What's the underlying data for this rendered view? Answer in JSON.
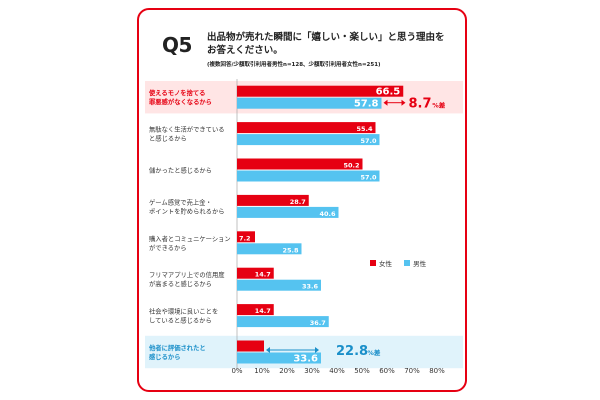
{
  "question": {
    "number": "Q5",
    "title": "出品物が売れた瞬間に「嬉しい・楽しい」と思う理由を\nお答えください。",
    "note": "(複数回答/少額取引利用者男性n=128、少額取引利用者女性n=251)"
  },
  "colors": {
    "female": "#e60012",
    "male": "#55c3f0",
    "highlight_bg": "#ffe5e5",
    "highlight_bg_blue": "#e0f3fb",
    "frame": "#e60012"
  },
  "chart_data": {
    "type": "bar",
    "orientation": "horizontal",
    "categories": [
      "使えるモノを捨てる\n罪悪感がなくなるから",
      "無駄なく生活ができている\nと感じるから",
      "儲かったと感じるから",
      "ゲーム感覚で売上金・\nポイントを貯められるから",
      "購入者とコミュニケーション\nができるから",
      "フリマアプリ上での信用度\nが高まると感じるから",
      "社会や環境に良いことを\nしていると感じるから",
      "他者に評価されたと\n感じるから"
    ],
    "series": [
      {
        "name": "女性",
        "values": [
          66.5,
          55.4,
          50.2,
          28.7,
          7.2,
          14.7,
          14.7,
          10.8
        ]
      },
      {
        "name": "男性",
        "values": [
          57.8,
          57.0,
          57.0,
          40.6,
          25.8,
          33.6,
          36.7,
          33.6
        ]
      }
    ],
    "highlighted_rows": [
      0,
      7
    ],
    "difference_annotations": [
      {
        "row": 0,
        "text": "8.7",
        "unit": "%差"
      },
      {
        "row": 7,
        "text": "22.8",
        "unit": "%差"
      }
    ],
    "xlim": [
      0,
      80
    ],
    "xticks": [
      "0%",
      "10%",
      "20%",
      "30%",
      "40%",
      "50%",
      "60%",
      "70%",
      "80%"
    ],
    "value_labels": true,
    "grid": false,
    "legend_position": "right"
  }
}
